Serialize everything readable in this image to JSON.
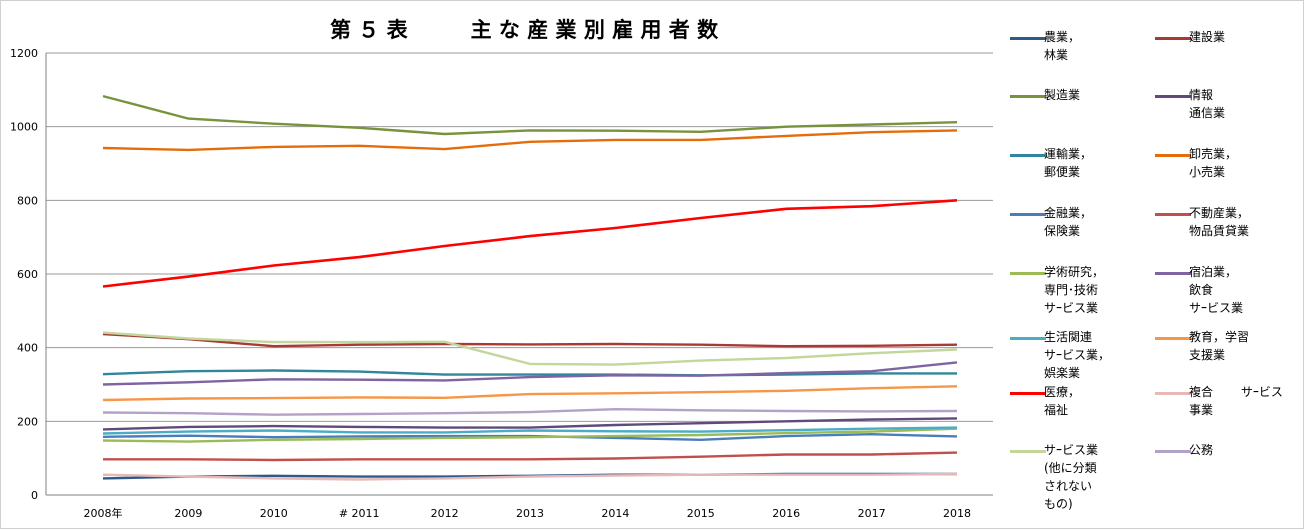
{
  "title": "第 ５ 表　　　主 な 産 業 別 雇 用 者 数",
  "chart_data": {
    "type": "line",
    "categories": [
      "2008年",
      "2009",
      "2010",
      "# 2011",
      "2012",
      "2013",
      "2014",
      "2015",
      "2016",
      "2017",
      "2018"
    ],
    "ylim": [
      0,
      1200
    ],
    "yticks": [
      "0",
      "200",
      "400",
      "600",
      "800",
      "1000",
      "1200"
    ],
    "grid": true,
    "legend_position": "right",
    "series": [
      {
        "name": "農業，\n林業",
        "color": "#2e5a8a",
        "values": [
          45,
          50,
          52,
          50,
          50,
          52,
          55,
          55,
          57,
          57,
          57
        ]
      },
      {
        "name": "建設業",
        "color": "#a83a36",
        "values": [
          437,
          423,
          404,
          408,
          410,
          409,
          410,
          408,
          404,
          405,
          408
        ]
      },
      {
        "name": "製造業",
        "color": "#77933c",
        "values": [
          1083,
          1022,
          1008,
          997,
          980,
          990,
          989,
          986,
          1000,
          1006,
          1012
        ]
      },
      {
        "name": "情報\n通信業",
        "color": "#604a7b",
        "values": [
          178,
          185,
          187,
          185,
          183,
          183,
          190,
          195,
          200,
          205,
          208
        ]
      },
      {
        "name": "運輸業，\n郵便業",
        "color": "#31859c",
        "values": [
          328,
          336,
          338,
          335,
          327,
          327,
          327,
          325,
          327,
          330,
          330
        ]
      },
      {
        "name": "卸売業，\n小売業",
        "color": "#e46c0a",
        "values": [
          942,
          937,
          945,
          948,
          939,
          959,
          964,
          964,
          975,
          985,
          990
        ]
      },
      {
        "name": "金融業，\n保険業",
        "color": "#4a7ebb",
        "values": [
          158,
          161,
          157,
          159,
          160,
          160,
          155,
          150,
          160,
          165,
          159
        ]
      },
      {
        "name": "不動産業，\n物品賃貸業",
        "color": "#c0504d",
        "values": [
          97,
          97,
          95,
          97,
          97,
          97,
          99,
          104,
          110,
          110,
          115
        ]
      },
      {
        "name": "学術研究，\n専門･技術\nサｰビス業",
        "color": "#9bbb59",
        "values": [
          148,
          145,
          150,
          152,
          155,
          157,
          160,
          163,
          168,
          172,
          180
        ]
      },
      {
        "name": "宿泊業，\n飲食\nサｰビス業",
        "color": "#8064a2",
        "values": [
          300,
          306,
          314,
          313,
          311,
          320,
          325,
          324,
          331,
          336,
          360
        ]
      },
      {
        "name": "生活関連\nサｰビス業，\n娯楽業",
        "color": "#4bacc6",
        "values": [
          167,
          172,
          175,
          170,
          170,
          175,
          173,
          172,
          176,
          180,
          183
        ]
      },
      {
        "name": "教育，学習\n支援業",
        "color": "#f79646",
        "values": [
          258,
          262,
          263,
          265,
          264,
          274,
          276,
          279,
          283,
          290,
          295
        ]
      },
      {
        "name": "医療，\n福祉",
        "color": "#ff0000",
        "values": [
          566,
          593,
          623,
          646,
          676,
          703,
          725,
          752,
          777,
          784,
          800
        ]
      },
      {
        "name": "複合　　 サｰビス\n事業",
        "color": "#e6b9b8",
        "values": [
          55,
          50,
          45,
          42,
          45,
          50,
          53,
          55,
          55,
          55,
          57
        ]
      },
      {
        "name": "サｰビス業\n(他に分類\nされない\nもの)",
        "color": "#c3d69b",
        "values": [
          441,
          425,
          415,
          415,
          416,
          356,
          354,
          365,
          372,
          385,
          395
        ]
      },
      {
        "name": "公務",
        "color": "#b3a2c7",
        "values": [
          224,
          222,
          218,
          220,
          222,
          225,
          233,
          230,
          228,
          227,
          228
        ]
      }
    ]
  }
}
